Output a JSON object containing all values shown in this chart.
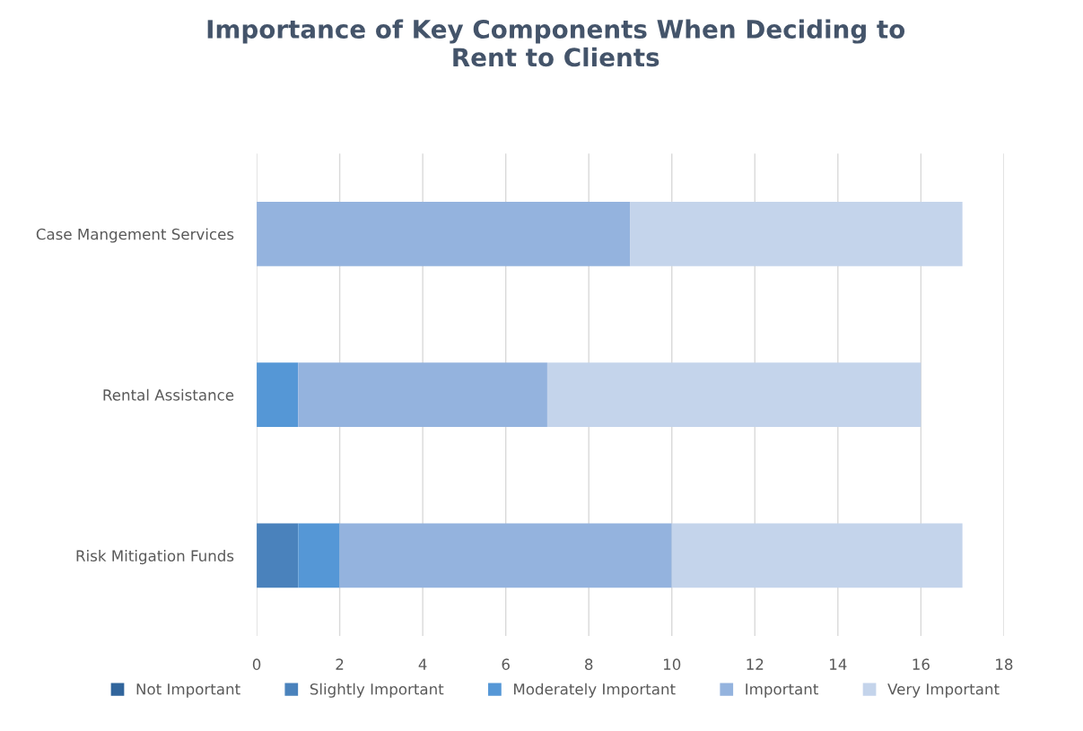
{
  "chart_data": {
    "type": "bar",
    "orientation": "horizontal",
    "stacked": true,
    "title": "Importance of Key Components When Deciding to\nRent to Clients",
    "categories": [
      "Case Mangement Services",
      "Rental Assistance",
      "Risk Mitigation Funds"
    ],
    "series": [
      {
        "name": "Not Important",
        "color": "#31659c",
        "values": [
          0,
          0,
          0
        ]
      },
      {
        "name": "Slightly Important",
        "color": "#4a82bc",
        "values": [
          0,
          0,
          1
        ]
      },
      {
        "name": "Moderately Important",
        "color": "#5597d6",
        "values": [
          0,
          1,
          1
        ]
      },
      {
        "name": "Important",
        "color": "#94b3de",
        "values": [
          9,
          6,
          8
        ]
      },
      {
        "name": "Very Important",
        "color": "#c4d4eb",
        "values": [
          8,
          9,
          7
        ]
      }
    ],
    "xlim": [
      0,
      18
    ],
    "xticks": [
      0,
      2,
      4,
      6,
      8,
      10,
      12,
      14,
      16,
      18
    ],
    "grid": "x",
    "legend": "bottom"
  }
}
